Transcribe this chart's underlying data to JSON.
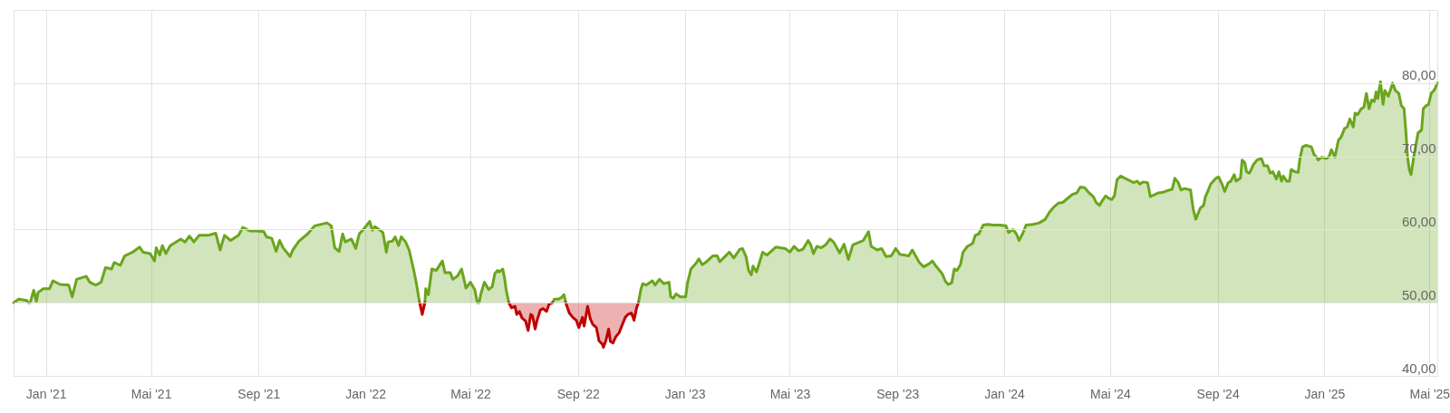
{
  "chart_data": {
    "type": "area",
    "xlim": [
      "2020-11-25",
      "2025-05-10"
    ],
    "xticks": [
      {
        "value": "2021-01-01",
        "label": "Jan '21"
      },
      {
        "value": "2021-05-01",
        "label": "Mai '21"
      },
      {
        "value": "2021-09-01",
        "label": "Sep '21"
      },
      {
        "value": "2022-01-01",
        "label": "Jan '22"
      },
      {
        "value": "2022-05-01",
        "label": "Mai '22"
      },
      {
        "value": "2022-09-01",
        "label": "Sep '22"
      },
      {
        "value": "2023-01-01",
        "label": "Jan '23"
      },
      {
        "value": "2023-05-01",
        "label": "Mai '23"
      },
      {
        "value": "2023-09-01",
        "label": "Sep '23"
      },
      {
        "value": "2024-01-01",
        "label": "Jan '24"
      },
      {
        "value": "2024-05-01",
        "label": "Mai '24"
      },
      {
        "value": "2024-09-01",
        "label": "Sep '24"
      },
      {
        "value": "2025-01-01",
        "label": "Jan '25"
      },
      {
        "value": "2025-05-01",
        "label": "Mai '25"
      }
    ],
    "ylim": [
      40,
      90
    ],
    "yticks": [
      {
        "value": 40,
        "label": "40,00"
      },
      {
        "value": 50,
        "label": "50,00"
      },
      {
        "value": 60,
        "label": "60,00"
      },
      {
        "value": 70,
        "label": "70,00"
      },
      {
        "value": 80,
        "label": "80,00"
      }
    ],
    "grid": true,
    "series": [
      {
        "color": "#6aa51d",
        "x": [
          "2020-11-25",
          "2020-12-01",
          "2020-12-10",
          "2020-12-12",
          "2020-12-14",
          "2020-12-18",
          "2020-12-21",
          "2020-12-23",
          "2020-12-29",
          "2021-01-05",
          "2021-01-09",
          "2021-01-17",
          "2021-01-27",
          "2021-01-31",
          "2021-02-05",
          "2021-02-16",
          "2021-02-20",
          "2021-02-27",
          "2021-03-05",
          "2021-03-10",
          "2021-03-17",
          "2021-03-20",
          "2021-03-27",
          "2021-04-01",
          "2021-04-10",
          "2021-04-18",
          "2021-04-22",
          "2021-04-30",
          "2021-05-05",
          "2021-05-07",
          "2021-05-11",
          "2021-05-14",
          "2021-05-18",
          "2021-05-23",
          "2021-06-04",
          "2021-06-09",
          "2021-06-14",
          "2021-06-19",
          "2021-06-25",
          "2021-07-05",
          "2021-07-14",
          "2021-07-19",
          "2021-07-24",
          "2021-07-31",
          "2021-08-09",
          "2021-08-14",
          "2021-08-22",
          "2021-08-29",
          "2021-09-07",
          "2021-09-10",
          "2021-09-16",
          "2021-09-21",
          "2021-09-25",
          "2021-09-29",
          "2021-10-07",
          "2021-10-10",
          "2021-10-17",
          "2021-10-27",
          "2021-11-04",
          "2021-11-18",
          "2021-11-23",
          "2021-11-27",
          "2021-12-02",
          "2021-12-06",
          "2021-12-09",
          "2021-12-16",
          "2021-12-21",
          "2021-12-25",
          "2021-12-29",
          "2022-01-06",
          "2022-01-09",
          "2022-01-12",
          "2022-01-21",
          "2022-01-25",
          "2022-01-27",
          "2022-02-01",
          "2022-02-04",
          "2022-02-08",
          "2022-02-11",
          "2022-02-16",
          "2022-02-20",
          "2022-02-25",
          "2022-02-28",
          "2022-03-04",
          "2022-03-07",
          "2022-03-10",
          "2022-03-11",
          "2022-03-14",
          "2022-03-18",
          "2022-03-23",
          "2022-03-30",
          "2022-04-02",
          "2022-04-08",
          "2022-04-11",
          "2022-04-16",
          "2022-04-21",
          "2022-04-26",
          "2022-05-01",
          "2022-05-06",
          "2022-05-09",
          "2022-05-11",
          "2022-05-13",
          "2022-05-17",
          "2022-05-22",
          "2022-05-26",
          "2022-05-29",
          "2022-06-01",
          "2022-06-03",
          "2022-06-07",
          "2022-06-09",
          "2022-06-11",
          "2022-06-14",
          "2022-07-06",
          "2022-08-03",
          "2022-08-05",
          "2022-08-10",
          "2022-08-13",
          "2022-08-16",
          "2022-08-18",
          "2022-10-01",
          "2022-11-09",
          "2022-11-12",
          "2022-11-14",
          "2022-11-18",
          "2022-11-25",
          "2022-11-28",
          "2022-12-03",
          "2022-12-08",
          "2022-12-14",
          "2022-12-16",
          "2022-12-19",
          "2022-12-22",
          "2022-12-27",
          "2023-01-02",
          "2023-01-04",
          "2023-01-08",
          "2023-01-14",
          "2023-01-17",
          "2023-01-21",
          "2023-01-26",
          "2023-02-02",
          "2023-02-07",
          "2023-02-10",
          "2023-02-15",
          "2023-02-21",
          "2023-02-26",
          "2023-03-05",
          "2023-03-08",
          "2023-03-12",
          "2023-03-15",
          "2023-03-18",
          "2023-03-20",
          "2023-03-24",
          "2023-03-31",
          "2023-04-05",
          "2023-04-15",
          "2023-04-26",
          "2023-05-01",
          "2023-05-06",
          "2023-05-11",
          "2023-05-16",
          "2023-05-22",
          "2023-05-25",
          "2023-05-28",
          "2023-06-01",
          "2023-06-06",
          "2023-06-11",
          "2023-06-16",
          "2023-06-20",
          "2023-06-27",
          "2023-07-02",
          "2023-07-07",
          "2023-07-12",
          "2023-07-24",
          "2023-07-30",
          "2023-08-02",
          "2023-08-09",
          "2023-08-14",
          "2023-08-19",
          "2023-08-25",
          "2023-08-30",
          "2023-09-04",
          "2023-09-14",
          "2023-09-18",
          "2023-09-26",
          "2023-10-01",
          "2023-10-07",
          "2023-10-11",
          "2023-10-15",
          "2023-10-22",
          "2023-10-26",
          "2023-10-29",
          "2023-11-02",
          "2023-11-05",
          "2023-11-08",
          "2023-11-12",
          "2023-11-15",
          "2023-11-20",
          "2023-11-26",
          "2023-11-29",
          "2023-12-03",
          "2023-12-08",
          "2023-12-13",
          "2023-12-20",
          "2023-12-27",
          "2024-01-03",
          "2024-01-06",
          "2024-01-11",
          "2024-01-15",
          "2024-01-18",
          "2024-01-22",
          "2024-01-26",
          "2024-02-03",
          "2024-02-10",
          "2024-02-17",
          "2024-02-22",
          "2024-02-27",
          "2024-03-03",
          "2024-03-08",
          "2024-03-12",
          "2024-03-19",
          "2024-03-24",
          "2024-03-28",
          "2024-04-02",
          "2024-04-07",
          "2024-04-12",
          "2024-04-15",
          "2024-04-19",
          "2024-04-22",
          "2024-04-26",
          "2024-04-29",
          "2024-05-03",
          "2024-05-06",
          "2024-05-09",
          "2024-05-13",
          "2024-05-18",
          "2024-05-23",
          "2024-05-28",
          "2024-06-01",
          "2024-06-04",
          "2024-06-08",
          "2024-06-13",
          "2024-06-16",
          "2024-06-20",
          "2024-06-25",
          "2024-07-01",
          "2024-07-05",
          "2024-07-11",
          "2024-07-14",
          "2024-07-18",
          "2024-07-21",
          "2024-07-25",
          "2024-08-01",
          "2024-08-04",
          "2024-08-07",
          "2024-08-12",
          "2024-08-16",
          "2024-08-18",
          "2024-08-21",
          "2024-08-24",
          "2024-08-30",
          "2024-09-02",
          "2024-09-06",
          "2024-09-09",
          "2024-09-13",
          "2024-09-16",
          "2024-09-20",
          "2024-09-22",
          "2024-09-27",
          "2024-09-29",
          "2024-10-02",
          "2024-10-04",
          "2024-10-07",
          "2024-10-09",
          "2024-10-12",
          "2024-10-16",
          "2024-10-21",
          "2024-10-24",
          "2024-10-28",
          "2024-10-31",
          "2024-11-03",
          "2024-11-07",
          "2024-11-10",
          "2024-11-13",
          "2024-11-15",
          "2024-11-19",
          "2024-11-22",
          "2024-11-24",
          "2024-11-28",
          "2024-12-02",
          "2024-12-04",
          "2024-12-07",
          "2024-12-11",
          "2024-12-17",
          "2024-12-20",
          "2024-12-23",
          "2024-12-25",
          "2024-12-29",
          "2025-01-03",
          "2025-01-06",
          "2025-01-09",
          "2025-01-13",
          "2025-01-17",
          "2025-01-20",
          "2025-01-24",
          "2025-01-27",
          "2025-01-30",
          "2025-02-03",
          "2025-02-05",
          "2025-02-08",
          "2025-02-12",
          "2025-02-15",
          "2025-02-18",
          "2025-02-21",
          "2025-02-24",
          "2025-02-27",
          "2025-03-01",
          "2025-03-03",
          "2025-03-06",
          "2025-03-09",
          "2025-03-11",
          "2025-03-15",
          "2025-03-20",
          "2025-03-23",
          "2025-03-27",
          "2025-03-30",
          "2025-04-02",
          "2025-04-04",
          "2025-04-06",
          "2025-04-08",
          "2025-04-10",
          "2025-04-13",
          "2025-04-16",
          "2025-04-18",
          "2025-04-22",
          "2025-04-24",
          "2025-04-27",
          "2025-04-30",
          "2025-05-03",
          "2025-05-06",
          "2025-05-08",
          "2025-05-10"
        ],
        "values": [
          50,
          50.5,
          50.3,
          50,
          50,
          51.7,
          50.2,
          51.4,
          51.9,
          51.9,
          53.0,
          52.5,
          52.4,
          50.8,
          53.2,
          53.6,
          52.8,
          52.4,
          52.8,
          54.8,
          54.6,
          55.5,
          55.1,
          56.4,
          56.9,
          57.6,
          56.9,
          56.7,
          55.7,
          57.5,
          56.5,
          57.8,
          56.7,
          57.8,
          58.7,
          58.3,
          59.1,
          58.3,
          59.2,
          59.2,
          59.5,
          57.2,
          59.2,
          58.5,
          59.2,
          60.3,
          59.8,
          59.8,
          59.7,
          59.0,
          58.8,
          57.0,
          58.5,
          57.5,
          56.3,
          57.2,
          58.4,
          59.4,
          60.5,
          60.9,
          60.5,
          57.5,
          57.0,
          59.4,
          58.3,
          58.7,
          57.4,
          59.4,
          59.9,
          61.1,
          59.9,
          60.4,
          59.6,
          56.9,
          58.3,
          58.4,
          59.0,
          57.8,
          59.0,
          58.3,
          57.2,
          54.6,
          52.8,
          50,
          null,
          50,
          51.9,
          51.1,
          54.6,
          54.4,
          55.7,
          54.1,
          54.1,
          53.2,
          53.6,
          54.6,
          52.0,
          52.8,
          51.8,
          50,
          50,
          51.2,
          52.8,
          51.8,
          52.2,
          54.0,
          54.4,
          54.2,
          54.6,
          53.4,
          51.7,
          50,
          null,
          50,
          50.5,
          50.5,
          50.7,
          51.1,
          50,
          null,
          50,
          51.9,
          52.6,
          52.4,
          53.0,
          52.4,
          53.2,
          52.6,
          52.8,
          50.8,
          50.6,
          51.2,
          50.8,
          50.8,
          52.6,
          54.6,
          55.4,
          56.0,
          55.2,
          55.6,
          56.4,
          56.4,
          55.6,
          56.2,
          56.9,
          56.1,
          57.3,
          57.4,
          56.3,
          54.4,
          53.8,
          55.0,
          54.2,
          56.9,
          56.5,
          57.6,
          57.4,
          56.9,
          57.7,
          57.1,
          57.3,
          58.5,
          57.9,
          56.7,
          57.7,
          57.5,
          57.9,
          58.7,
          58.3,
          56.8,
          58.0,
          55.9,
          57.9,
          58.5,
          59.7,
          57.7,
          57.2,
          57.4,
          56.3,
          56.4,
          57.4,
          56.6,
          56.4,
          57.2,
          55.5,
          54.9,
          55.3,
          55.7,
          55.0,
          54.0,
          52.9,
          52.5,
          52.7,
          54.6,
          54.4,
          55.2,
          56.9,
          57.7,
          58.1,
          59.2,
          59.4,
          60.6,
          60.7,
          60.6,
          60.6,
          60.5,
          59.6,
          60.0,
          59.4,
          58.5,
          59.4,
          60.6,
          60.7,
          60.9,
          61.4,
          62.4,
          63.1,
          63.6,
          63.7,
          64.1,
          64.8,
          65.0,
          65.8,
          65.7,
          65.0,
          64.5,
          63.7,
          63.3,
          63.9,
          64.6,
          64.3,
          64.1,
          64.6,
          66.8,
          67.3,
          67.0,
          66.7,
          66.4,
          66.6,
          66.2,
          66.5,
          66.4,
          64.5,
          64.7,
          65.0,
          65.1,
          65.3,
          65.5,
          67.0,
          66.4,
          65.4,
          65.6,
          65.4,
          62.8,
          61.4,
          62.9,
          63.3,
          64.5,
          65.3,
          66.2,
          67.0,
          67.2,
          66.2,
          65.2,
          66.4,
          66.6,
          67.5,
          66.6,
          67.0,
          69.5,
          69.1,
          67.9,
          67.7,
          68.1,
          68.9,
          69.5,
          69.7,
          68.7,
          68.7,
          67.7,
          67.9,
          66.9,
          67.9,
          66.6,
          67.3,
          66.6,
          66.6,
          68.2,
          67.9,
          67.8,
          69.7,
          71.3,
          71.5,
          71.3,
          70.3,
          69.9,
          69.5,
          69.9,
          69.7,
          69.9,
          70.9,
          69.9,
          72.2,
          72.6,
          73.8,
          74.0,
          75.1,
          74.0,
          75.9,
          75.7,
          76.5,
          76.7,
          78.6,
          76.5,
          77.7,
          77.5,
          78.8,
          77.9,
          80.2,
          77.1,
          79.0,
          78.2,
          80.0,
          79.0,
          78.6,
          76.9,
          76.5,
          73.6,
          69.9,
          68.2,
          67.5,
          69.9,
          71.9,
          73.2,
          73.6,
          76.5,
          76.9,
          77.1,
          78.6,
          79.0,
          79.4,
          80.0
        ]
      },
      {
        "color": "#c00000",
        "x": [
          "2022-03-04",
          "2022-03-07",
          "2022-03-10",
          "2022-04-01",
          "2022-06-14",
          "2022-06-17",
          "2022-06-21",
          "2022-06-23",
          "2022-06-26",
          "2022-06-29",
          "2022-07-03",
          "2022-07-06",
          "2022-07-09",
          "2022-07-11",
          "2022-07-14",
          "2022-07-16",
          "2022-07-20",
          "2022-07-23",
          "2022-07-27",
          "2022-07-30",
          "2022-08-03",
          "2022-08-10",
          "2022-08-18",
          "2022-08-22",
          "2022-08-26",
          "2022-08-30",
          "2022-09-02",
          "2022-09-06",
          "2022-09-08",
          "2022-09-12",
          "2022-09-15",
          "2022-09-18",
          "2022-09-22",
          "2022-09-25",
          "2022-09-29",
          "2022-09-30",
          "2022-10-03",
          "2022-10-06",
          "2022-10-08",
          "2022-10-11",
          "2022-10-14",
          "2022-10-18",
          "2022-10-21",
          "2022-10-25",
          "2022-10-28",
          "2022-11-01",
          "2022-11-04",
          "2022-11-07",
          "2022-11-09"
        ],
        "values": [
          50,
          48.4,
          50,
          null,
          50,
          49.3,
          49.5,
          48.4,
          48.8,
          47.9,
          47.5,
          46.2,
          48.4,
          48.2,
          46.4,
          47.5,
          49.0,
          49.2,
          48.8,
          49.8,
          50,
          null,
          50,
          48.6,
          48.0,
          47.6,
          46.6,
          48.0,
          46.8,
          49.5,
          47.8,
          47.0,
          46.6,
          44.8,
          44.3,
          43.9,
          44.9,
          46.4,
          44.7,
          44.5,
          45.3,
          45.9,
          46.8,
          48.0,
          48.4,
          48.6,
          47.6,
          49.3,
          50
        ]
      }
    ]
  }
}
